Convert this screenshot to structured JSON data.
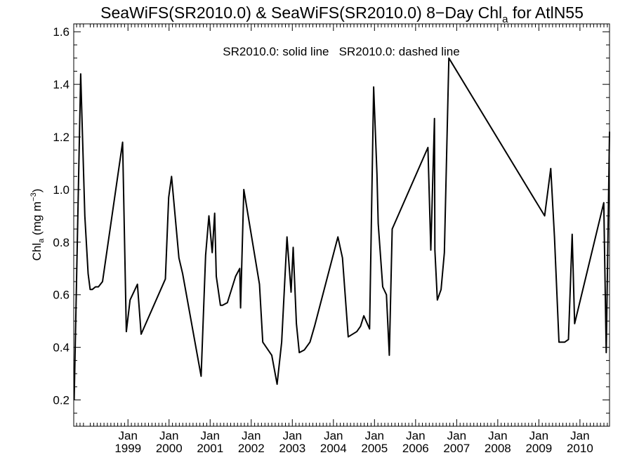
{
  "chart_data": {
    "type": "line",
    "title_main": "SeaWiFS(SR2010.0) & SeaWiFS(SR2010.0) 8−Day Chl",
    "title_sub": "a",
    "title_tail": " for AtlN55",
    "ylabel_main": "Chl",
    "ylabel_sub": "a",
    "ylabel_units": " (mg m",
    "ylabel_sup": "−3",
    "ylabel_close": ")",
    "annotation": "SR2010.0: solid line   SR2010.0: dashed line",
    "ylim": [
      0.1,
      1.63
    ],
    "yticks": [
      0.2,
      0.4,
      0.6,
      0.8,
      1.0,
      1.2,
      1.4,
      1.6
    ],
    "ytick_labels": [
      "0.2",
      "0.4",
      "0.6",
      "0.8",
      "1.0",
      "1.2",
      "1.4",
      "1.6"
    ],
    "xlim": [
      1997.68,
      2010.72
    ],
    "xtick_month_label": "Jan",
    "xticks": [
      1999,
      2000,
      2001,
      2002,
      2003,
      2004,
      2005,
      2006,
      2007,
      2008,
      2009,
      2010
    ],
    "xtick_year_labels": [
      "1999",
      "2000",
      "2001",
      "2002",
      "2003",
      "2004",
      "2005",
      "2006",
      "2007",
      "2008",
      "2009",
      "2010"
    ],
    "grid": false,
    "series": [
      {
        "style": "solid",
        "x": [
          1997.69,
          1997.85,
          1997.95,
          1998.03,
          1998.08,
          1998.13,
          1998.21,
          1998.28,
          1998.38,
          1998.87,
          1998.96,
          1999.05,
          1999.23,
          1999.32,
          1999.91,
          1999.99,
          2000.06,
          2000.24,
          2000.33,
          2000.78,
          2000.89,
          2000.97,
          2001.05,
          2001.11,
          2001.15,
          2001.25,
          2001.3,
          2001.42,
          2001.62,
          2001.72,
          2001.74,
          2001.82,
          2002.2,
          2002.28,
          2002.5,
          2002.63,
          2002.74,
          2002.87,
          2002.97,
          2003.02,
          2003.1,
          2003.17,
          2003.29,
          2003.43,
          2003.54,
          2004.11,
          2004.22,
          2004.36,
          2004.57,
          2004.66,
          2004.74,
          2004.88,
          2004.98,
          2005.06,
          2005.09,
          2005.2,
          2005.29,
          2005.36,
          2005.43,
          2006.3,
          2006.37,
          2006.46,
          2006.47,
          2006.53,
          2006.62,
          2006.7,
          2006.81,
          2009.14,
          2009.29,
          2009.38,
          2009.49,
          2009.63,
          2009.72,
          2009.81,
          2009.87,
          2010.58,
          2010.64,
          2010.72
        ],
        "y": [
          0.2,
          1.44,
          0.9,
          0.68,
          0.62,
          0.62,
          0.63,
          0.63,
          0.65,
          1.18,
          0.46,
          0.58,
          0.64,
          0.45,
          0.66,
          0.97,
          1.05,
          0.74,
          0.68,
          0.29,
          0.75,
          0.9,
          0.76,
          0.91,
          0.67,
          0.56,
          0.56,
          0.57,
          0.67,
          0.7,
          0.55,
          1.0,
          0.64,
          0.42,
          0.37,
          0.26,
          0.42,
          0.82,
          0.61,
          0.78,
          0.49,
          0.38,
          0.39,
          0.42,
          0.48,
          0.82,
          0.74,
          0.44,
          0.46,
          0.48,
          0.52,
          0.47,
          1.39,
          1.06,
          0.87,
          0.63,
          0.6,
          0.37,
          0.85,
          1.16,
          0.77,
          1.27,
          0.77,
          0.58,
          0.62,
          0.76,
          1.5,
          0.9,
          1.08,
          0.82,
          0.42,
          0.42,
          0.43,
          0.83,
          0.49,
          0.95,
          0.38,
          1.22
        ]
      }
    ]
  }
}
